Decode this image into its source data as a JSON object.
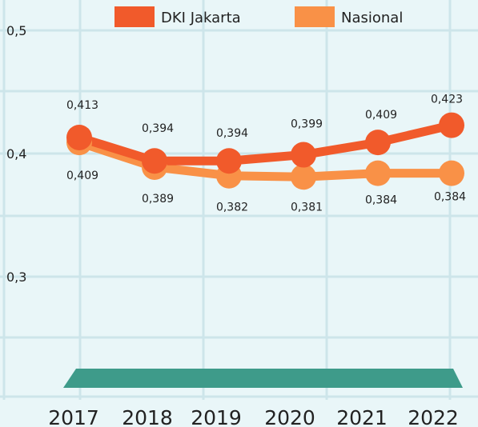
{
  "chart_data": {
    "type": "line",
    "categories": [
      "2017",
      "2018",
      "2019",
      "2020",
      "2021",
      "2022"
    ],
    "series": [
      {
        "name": "DKI Jakarta",
        "values": [
          0.413,
          0.394,
          0.394,
          0.399,
          0.409,
          0.423
        ],
        "labels": [
          "0,413",
          "0,394",
          "0,394",
          "0,399",
          "0,409",
          "0,423"
        ],
        "color": "#f15a2b"
      },
      {
        "name": "Nasional",
        "values": [
          0.409,
          0.389,
          0.382,
          0.381,
          0.384,
          0.384
        ],
        "labels": [
          "0,409",
          "0,389",
          "0,382",
          "0,381",
          "0,384",
          "0,384"
        ],
        "color": "#f99147"
      }
    ],
    "yticks": [
      {
        "value": 0.5,
        "label": "0,5"
      },
      {
        "value": 0.4,
        "label": "0,4"
      },
      {
        "value": 0.3,
        "label": "0,3"
      }
    ],
    "ylim": [
      0.2,
      0.5
    ],
    "grid": true,
    "legend": "top",
    "base_band_color": "#3e9b8a"
  }
}
